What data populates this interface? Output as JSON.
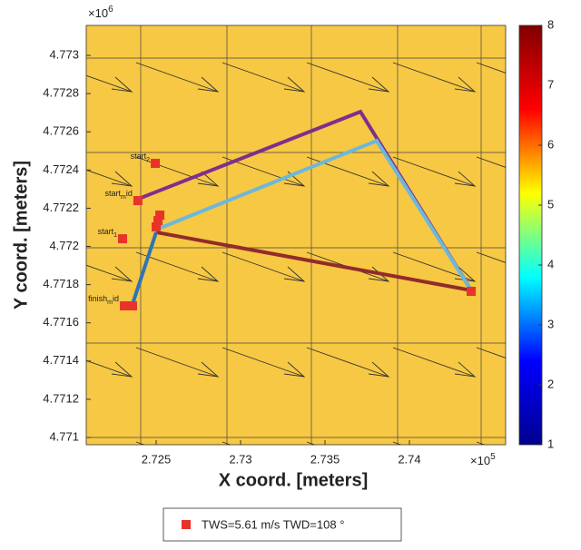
{
  "chart_data": {
    "type": "line",
    "xlabel": "X coord. [meters]",
    "ylabel": "Y coord. [meters]",
    "xexponent": {
      "base": "×10",
      "power": "5"
    },
    "yexponent": {
      "base": "×10",
      "power": "6"
    },
    "background": "#f7c843",
    "xlim": [
      2.72086,
      2.7457
    ],
    "ylim": [
      4.770962,
      4.773157
    ],
    "xticks": [
      2.725,
      2.73,
      2.735,
      2.74
    ],
    "yticks": [
      4.771,
      4.7712,
      4.7714,
      4.7716,
      4.7718,
      4.772,
      4.7722,
      4.7724,
      4.7726,
      4.7728,
      4.773
    ],
    "series": [
      {
        "color": "#7e2f8e",
        "x": [
          2.72409,
          2.7371,
          2.74366
        ],
        "y": [
          4.772254,
          4.772705,
          4.77177
        ]
      },
      {
        "color": "#6cb8dc",
        "x": [
          2.725,
          2.73806,
          2.74366
        ],
        "y": [
          4.772088,
          4.772553,
          4.77177
        ]
      },
      {
        "color": "#922b2b",
        "x": [
          2.725,
          2.74366
        ],
        "y": [
          4.772074,
          4.77177
        ]
      },
      {
        "color": "#2f74b5",
        "x": [
          2.72355,
          2.725
        ],
        "y": [
          4.771684,
          4.772074
        ]
      }
    ],
    "markers": {
      "color": "#e8332a",
      "x": [
        2.72495,
        2.72392,
        2.72522,
        2.72511,
        2.725,
        2.72301,
        2.72312,
        2.7236,
        2.74366
      ],
      "y": [
        4.772435,
        4.77224,
        4.772164,
        4.772135,
        4.772102,
        4.77204,
        4.771689,
        4.771689,
        4.771765
      ],
      "labels": [
        [
          "start",
          "2",
          ""
        ],
        [
          "start",
          "m",
          "id"
        ],
        null,
        null,
        null,
        [
          "start",
          "1",
          ""
        ],
        [
          "finish",
          "m",
          "id"
        ],
        null,
        null
      ]
    },
    "legend": "TWS=5.61 m/s  TWD=108 °",
    "colorbar": {
      "lim": [
        1,
        8
      ],
      "ticks": [
        1,
        2,
        3,
        4,
        5,
        6,
        7,
        8
      ],
      "colors": [
        "#00008f",
        "#0000ff",
        "#00ffff",
        "#ffff00",
        "#ff0000",
        "#800000"
      ]
    }
  }
}
